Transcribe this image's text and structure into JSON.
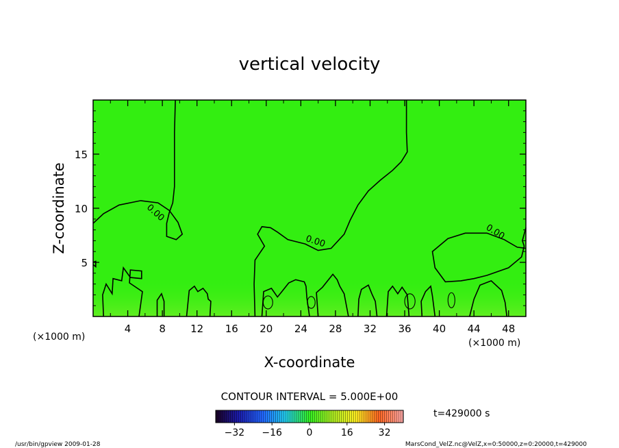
{
  "chart_data": {
    "type": "heatmap",
    "title": "vertical velocity",
    "xlabel": "X-coordinate",
    "ylabel": "Z-coordinate",
    "x_unit_left": "(×1000 m)",
    "x_unit_right": "(×1000 m)",
    "xlim": [
      0,
      50
    ],
    "ylim": [
      0,
      20
    ],
    "x_ticks": [
      4,
      8,
      12,
      16,
      20,
      24,
      28,
      32,
      36,
      40,
      44,
      48
    ],
    "y_ticks": [
      5,
      10,
      15
    ],
    "contour_label": "0.00",
    "contour_interval_text": "CONTOUR INTERVAL = 5.000E+00",
    "time_text": "t=429000 s",
    "colorbar": {
      "range": [
        -40,
        40
      ],
      "ticks": [
        -32,
        -16,
        0,
        16,
        32
      ],
      "tick_labels": [
        "−32",
        "−16",
        "0",
        "16",
        "32"
      ]
    },
    "background_color": "#33ee11",
    "zero_contour": [
      [
        [
          0,
          8.6
        ],
        [
          1.2,
          9.5
        ],
        [
          3,
          10.3
        ],
        [
          5.5,
          10.7
        ],
        [
          7.5,
          10.5
        ],
        [
          8.8,
          9.8
        ],
        [
          9.8,
          8.7
        ],
        [
          10.3,
          7.6
        ],
        [
          9.6,
          7.1
        ],
        [
          8.5,
          7.4
        ],
        [
          8.5,
          8.6
        ],
        [
          8.8,
          9.6
        ],
        [
          9.2,
          10.5
        ],
        [
          9.4,
          12
        ],
        [
          9.4,
          15
        ],
        [
          9.4,
          17
        ],
        [
          9.5,
          20
        ]
      ],
      [
        [
          36.2,
          20
        ],
        [
          36.2,
          17
        ],
        [
          36.3,
          15.2
        ],
        [
          35.6,
          14.3
        ],
        [
          34.6,
          13.5
        ],
        [
          33.2,
          12.6
        ],
        [
          31.8,
          11.6
        ],
        [
          30.6,
          10.3
        ],
        [
          29.7,
          8.9
        ],
        [
          29,
          7.6
        ],
        [
          27.5,
          6.3
        ],
        [
          26,
          6.1
        ],
        [
          24.5,
          6.7
        ],
        [
          22.5,
          7.1
        ],
        [
          21.3,
          7.8
        ],
        [
          20.5,
          8.2
        ],
        [
          19.5,
          8.3
        ],
        [
          19,
          7.6
        ],
        [
          19.8,
          6.5
        ],
        [
          19.2,
          5.8
        ],
        [
          18.7,
          5.2
        ],
        [
          18.6,
          3
        ],
        [
          18.7,
          0
        ]
      ],
      [
        [
          50,
          8.2
        ],
        [
          49.6,
          7
        ],
        [
          49.8,
          6.5
        ],
        [
          49.5,
          5.5
        ],
        [
          48,
          4.5
        ],
        [
          45.5,
          3.8
        ],
        [
          44,
          3.5
        ],
        [
          42.5,
          3.3
        ],
        [
          40.7,
          3.2
        ],
        [
          39.5,
          4.5
        ],
        [
          39.2,
          6
        ],
        [
          41,
          7.2
        ],
        [
          43,
          7.7
        ],
        [
          45.5,
          7.7
        ],
        [
          47.5,
          7.1
        ],
        [
          49,
          6.4
        ],
        [
          50,
          6.3
        ]
      ],
      [
        [
          0,
          4.8
        ],
        [
          0.3,
          4.6
        ],
        [
          0.3,
          5.1
        ],
        [
          0,
          5
        ]
      ],
      [
        [
          1.2,
          0
        ],
        [
          1.1,
          2
        ],
        [
          1.5,
          3
        ],
        [
          2.2,
          2.1
        ],
        [
          2.3,
          3.5
        ],
        [
          3.3,
          3.3
        ],
        [
          3.5,
          4.5
        ],
        [
          4.3,
          3.6
        ],
        [
          5.6,
          3.5
        ],
        [
          5.6,
          4.2
        ],
        [
          4.3,
          4.3
        ],
        [
          4.2,
          3.1
        ],
        [
          5.7,
          2.3
        ],
        [
          5.3,
          0
        ]
      ],
      [
        [
          7.4,
          0
        ],
        [
          7.4,
          1.5
        ],
        [
          7.9,
          2.1
        ],
        [
          8.2,
          1.4
        ],
        [
          8.2,
          0
        ]
      ],
      [
        [
          10.8,
          0
        ],
        [
          11.1,
          2.4
        ],
        [
          11.7,
          2.8
        ],
        [
          12.1,
          2.3
        ],
        [
          12.7,
          2.6
        ],
        [
          13.2,
          2.1
        ],
        [
          13.3,
          1.6
        ],
        [
          13.6,
          1.4
        ],
        [
          13.5,
          0
        ]
      ],
      [
        [
          19.5,
          0
        ],
        [
          19.7,
          2.3
        ],
        [
          20.6,
          2.6
        ],
        [
          21.3,
          1.8
        ],
        [
          21.8,
          2.3
        ],
        [
          22.6,
          3.1
        ],
        [
          23.4,
          3.4
        ],
        [
          24.4,
          3.2
        ],
        [
          24.6,
          2.8
        ],
        [
          24.7,
          1.7
        ],
        [
          25,
          0
        ]
      ],
      [
        [
          26,
          0
        ],
        [
          25.8,
          2.2
        ],
        [
          26.5,
          2.7
        ],
        [
          27.1,
          3.3
        ],
        [
          27.7,
          3.9
        ],
        [
          28.2,
          3.4
        ],
        [
          28.5,
          2.8
        ],
        [
          29,
          2.1
        ],
        [
          29.5,
          0
        ]
      ],
      [
        [
          30.6,
          0
        ],
        [
          30.7,
          1.6
        ],
        [
          31,
          2.5
        ],
        [
          31.8,
          2.9
        ],
        [
          32.2,
          2.1
        ],
        [
          32.6,
          1.4
        ],
        [
          32.8,
          0
        ]
      ],
      [
        [
          33.9,
          0
        ],
        [
          34.1,
          2.3
        ],
        [
          34.6,
          2.8
        ],
        [
          35.2,
          2.1
        ],
        [
          35.7,
          2.7
        ],
        [
          36.3,
          2
        ],
        [
          36.5,
          0
        ]
      ],
      [
        [
          38,
          0
        ],
        [
          37.9,
          1.4
        ],
        [
          38.4,
          2.3
        ],
        [
          39,
          2.8
        ],
        [
          39.2,
          1.9
        ],
        [
          39.5,
          0
        ]
      ],
      [
        [
          43.5,
          0
        ],
        [
          44,
          1.6
        ],
        [
          44.7,
          2.9
        ],
        [
          46,
          3.3
        ],
        [
          47.2,
          2.4
        ],
        [
          47.6,
          1.3
        ],
        [
          47.8,
          0
        ]
      ]
    ],
    "small_contours": [
      {
        "x": 20.2,
        "z": 1.3,
        "rx": 0.55,
        "rz": 0.6
      },
      {
        "x": 25.2,
        "z": 1.3,
        "rx": 0.45,
        "rz": 0.55
      },
      {
        "x": 36.6,
        "z": 1.4,
        "rx": 0.6,
        "rz": 0.7
      },
      {
        "x": 41.4,
        "z": 1.5,
        "rx": 0.4,
        "rz": 0.7
      }
    ],
    "contour_labels": [
      {
        "x": 7.0,
        "z": 9.4,
        "angle": 42
      },
      {
        "x": 25.6,
        "z": 6.7,
        "angle": 18
      },
      {
        "x": 46.3,
        "z": 7.6,
        "angle": 32
      }
    ]
  },
  "footer": {
    "left": "/usr/bin/gpview   2009-01-28",
    "right": "MarsCond_VelZ.nc@VelZ,x=0:50000,z=0:20000,t=429000"
  }
}
